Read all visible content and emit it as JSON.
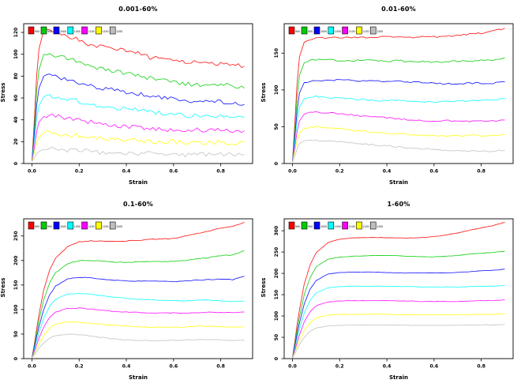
{
  "page": {
    "background": "#ffffff"
  },
  "legend": {
    "labels": [
      "900",
      "950",
      "1000",
      "1050",
      "1100",
      "1150",
      "1200"
    ]
  },
  "colors": {
    "series": [
      "#FF0000",
      "#00CD00",
      "#0000FF",
      "#00FFFF",
      "#FF00FF",
      "#FFFF00",
      "#BEBEBE"
    ]
  },
  "chart_data": [
    {
      "type": "line",
      "title": "0.001-60%",
      "xlabel": "Strain",
      "ylabel": "Stress",
      "xlim": [
        -0.035,
        0.935
      ],
      "ylim": [
        0,
        128
      ],
      "noise": 2.0,
      "xticks": {
        "values": [
          0.0,
          0.2,
          0.4,
          0.6,
          0.8
        ],
        "labels": [
          "0.0",
          "0.2",
          "0.4",
          "0.6",
          "0.8"
        ]
      },
      "yticks": {
        "values": [
          0,
          20,
          40,
          60,
          80,
          100,
          120
        ],
        "labels": [
          "0",
          "20",
          "40",
          "60",
          "80",
          "100",
          "120"
        ]
      },
      "x": [
        0,
        0.01,
        0.02,
        0.03,
        0.05,
        0.075,
        0.1,
        0.15,
        0.2,
        0.25,
        0.3,
        0.35,
        0.4,
        0.45,
        0.5,
        0.55,
        0.6,
        0.65,
        0.7,
        0.75,
        0.8,
        0.85,
        0.9
      ],
      "series": [
        {
          "name": "900",
          "color": "#FF0000",
          "values": [
            2,
            40,
            80,
            105,
            122,
            122,
            120,
            117,
            113,
            108,
            107,
            105,
            103,
            101,
            97,
            96,
            95,
            93,
            93,
            91,
            92,
            90,
            89
          ]
        },
        {
          "name": "950",
          "color": "#00CD00",
          "values": [
            2,
            33,
            66,
            86,
            100,
            101,
            99,
            96,
            93,
            88,
            86,
            84,
            83,
            81,
            78,
            76,
            75,
            73,
            72,
            71,
            73,
            70,
            69
          ]
        },
        {
          "name": "1000",
          "color": "#0000FF",
          "values": [
            2,
            27,
            53,
            69,
            80,
            81,
            80,
            77,
            74,
            71,
            69,
            67,
            65,
            64,
            61,
            60,
            59,
            57,
            58,
            56,
            57,
            55,
            54
          ]
        },
        {
          "name": "1050",
          "color": "#00FFFF",
          "values": [
            2,
            21,
            41,
            53,
            61,
            62,
            61,
            59,
            57,
            54,
            53,
            51,
            50,
            49,
            47,
            46,
            45,
            44,
            44,
            43,
            44,
            42,
            42
          ]
        },
        {
          "name": "1100",
          "color": "#FF00FF",
          "values": [
            2,
            15,
            29,
            38,
            43,
            44,
            43,
            42,
            40,
            38,
            36,
            35,
            34,
            33,
            32,
            31,
            31,
            30,
            31,
            30,
            31,
            29,
            30
          ]
        },
        {
          "name": "1150",
          "color": "#FFFF00",
          "values": [
            2,
            10,
            19,
            24,
            28,
            28,
            27,
            26,
            26,
            24,
            23,
            22,
            22,
            21,
            20,
            20,
            20,
            19,
            19,
            19,
            20,
            18,
            19
          ]
        },
        {
          "name": "1200",
          "color": "#BEBEBE",
          "values": [
            2,
            5,
            9,
            11,
            13,
            13,
            13,
            12,
            12,
            11,
            10,
            10,
            10,
            9,
            9,
            9,
            9,
            8,
            9,
            8,
            9,
            8,
            8
          ]
        }
      ]
    },
    {
      "type": "line",
      "title": "0.01-60%",
      "xlabel": "Strain",
      "ylabel": "Stress",
      "xlim": [
        -0.035,
        0.935
      ],
      "ylim": [
        0,
        190
      ],
      "noise": 1.1,
      "xticks": {
        "values": [
          0.0,
          0.2,
          0.4,
          0.6,
          0.8
        ],
        "labels": [
          "0.0",
          "0.2",
          "0.4",
          "0.6",
          "0.8"
        ]
      },
      "yticks": {
        "values": [
          0,
          50,
          100,
          150
        ],
        "labels": [
          "0",
          "50",
          "100",
          "150"
        ]
      },
      "x": [
        0,
        0.01,
        0.02,
        0.03,
        0.05,
        0.075,
        0.1,
        0.15,
        0.2,
        0.25,
        0.3,
        0.35,
        0.4,
        0.45,
        0.5,
        0.55,
        0.6,
        0.65,
        0.7,
        0.75,
        0.8,
        0.85,
        0.9
      ],
      "series": [
        {
          "name": "900",
          "color": "#FF0000",
          "values": [
            2,
            55,
            110,
            145,
            165,
            169,
            170,
            171,
            171,
            171,
            171,
            172,
            172,
            172,
            171,
            173,
            172,
            173,
            174,
            176,
            177,
            180,
            184
          ]
        },
        {
          "name": "950",
          "color": "#00CD00",
          "values": [
            2,
            45,
            90,
            120,
            137,
            140,
            141,
            141,
            140,
            140,
            140,
            140,
            139,
            140,
            138,
            139,
            138,
            138,
            139,
            139,
            140,
            141,
            144
          ]
        },
        {
          "name": "1000",
          "color": "#0000FF",
          "values": [
            2,
            36,
            72,
            96,
            110,
            112,
            113,
            113,
            114,
            113,
            112,
            112,
            111,
            112,
            110,
            110,
            109,
            108,
            109,
            109,
            109,
            109,
            111
          ]
        },
        {
          "name": "1050",
          "color": "#00FFFF",
          "values": [
            2,
            29,
            58,
            77,
            88,
            90,
            91,
            90,
            89,
            88,
            87,
            86,
            85,
            86,
            84,
            84,
            84,
            84,
            85,
            85,
            86,
            86,
            88
          ]
        },
        {
          "name": "1100",
          "color": "#FF00FF",
          "values": [
            2,
            22,
            44,
            58,
            67,
            69,
            70,
            69,
            68,
            66,
            64,
            63,
            62,
            61,
            59,
            59,
            58,
            58,
            58,
            57,
            58,
            58,
            59
          ]
        },
        {
          "name": "1150",
          "color": "#FFFF00",
          "values": [
            2,
            16,
            31,
            41,
            48,
            49,
            50,
            49,
            47,
            45,
            44,
            42,
            41,
            41,
            39,
            39,
            38,
            38,
            38,
            38,
            38,
            38,
            39
          ]
        },
        {
          "name": "1200",
          "color": "#BEBEBE",
          "values": [
            2,
            10,
            20,
            27,
            31,
            32,
            32,
            31,
            30,
            28,
            27,
            25,
            24,
            23,
            21,
            20,
            19,
            18,
            18,
            17,
            17,
            17,
            18
          ]
        }
      ]
    },
    {
      "type": "line",
      "title": "0.1-60%",
      "xlabel": "Strain",
      "ylabel": "Stress",
      "xlim": [
        -0.035,
        0.935
      ],
      "ylim": [
        0,
        285
      ],
      "noise": 0.7,
      "xticks": {
        "values": [
          0.0,
          0.2,
          0.4,
          0.6,
          0.8
        ],
        "labels": [
          "0.0",
          "0.2",
          "0.4",
          "0.6",
          "0.8"
        ]
      },
      "yticks": {
        "values": [
          0,
          50,
          100,
          150,
          200,
          250
        ],
        "labels": [
          "0",
          "50",
          "100",
          "150",
          "200",
          "250"
        ]
      },
      "x": [
        0,
        0.01,
        0.02,
        0.03,
        0.05,
        0.075,
        0.1,
        0.15,
        0.2,
        0.25,
        0.3,
        0.35,
        0.4,
        0.45,
        0.5,
        0.55,
        0.6,
        0.65,
        0.7,
        0.75,
        0.8,
        0.85,
        0.9
      ],
      "series": [
        {
          "name": "900",
          "color": "#FF0000",
          "values": [
            2,
            30,
            60,
            90,
            140,
            180,
            205,
            228,
            238,
            240,
            240,
            239,
            240,
            241,
            243,
            244,
            245,
            250,
            255,
            260,
            266,
            269,
            278
          ]
        },
        {
          "name": "950",
          "color": "#00CD00",
          "values": [
            2,
            26,
            52,
            78,
            120,
            155,
            175,
            193,
            200,
            200,
            199,
            197,
            196,
            197,
            198,
            198,
            198,
            200,
            203,
            206,
            210,
            211,
            220
          ]
        },
        {
          "name": "1000",
          "color": "#0000FF",
          "values": [
            2,
            22,
            44,
            65,
            100,
            130,
            148,
            162,
            166,
            165,
            162,
            160,
            158,
            158,
            158,
            158,
            157,
            158,
            160,
            161,
            162,
            161,
            168
          ]
        },
        {
          "name": "1050",
          "color": "#00FFFF",
          "values": [
            2,
            18,
            36,
            53,
            82,
            107,
            121,
            131,
            133,
            131,
            128,
            125,
            123,
            121,
            120,
            119,
            118,
            118,
            119,
            119,
            118,
            116,
            117
          ]
        },
        {
          "name": "1100",
          "color": "#FF00FF",
          "values": [
            2,
            14,
            28,
            42,
            64,
            84,
            95,
            102,
            103,
            101,
            99,
            96,
            95,
            94,
            93,
            93,
            93,
            93,
            94,
            95,
            94,
            94,
            95
          ]
        },
        {
          "name": "1150",
          "color": "#FFFF00",
          "values": [
            2,
            10,
            20,
            30,
            47,
            62,
            70,
            75,
            74,
            72,
            70,
            68,
            66,
            65,
            64,
            64,
            64,
            64,
            66,
            66,
            65,
            64,
            65
          ]
        },
        {
          "name": "1200",
          "color": "#BEBEBE",
          "values": [
            2,
            7,
            14,
            21,
            32,
            42,
            47,
            50,
            49,
            46,
            43,
            40,
            38,
            37,
            37,
            37,
            37,
            38,
            39,
            39,
            38,
            37,
            37
          ]
        }
      ]
    },
    {
      "type": "line",
      "title": "1-60%",
      "xlabel": "Strain",
      "ylabel": "Stress",
      "xlim": [
        -0.035,
        0.935
      ],
      "ylim": [
        0,
        328
      ],
      "noise": 0.45,
      "xticks": {
        "values": [
          0.0,
          0.2,
          0.4,
          0.6,
          0.8
        ],
        "labels": [
          "0.0",
          "0.2",
          "0.4",
          "0.6",
          "0.8"
        ]
      },
      "yticks": {
        "values": [
          0,
          50,
          100,
          150,
          200,
          250,
          300
        ],
        "labels": [
          "0",
          "50",
          "100",
          "150",
          "200",
          "250",
          "300"
        ]
      },
      "x": [
        0,
        0.01,
        0.02,
        0.03,
        0.05,
        0.075,
        0.1,
        0.15,
        0.2,
        0.25,
        0.3,
        0.35,
        0.4,
        0.45,
        0.5,
        0.55,
        0.6,
        0.65,
        0.7,
        0.75,
        0.8,
        0.85,
        0.9
      ],
      "series": [
        {
          "name": "900",
          "color": "#FF0000",
          "values": [
            2,
            40,
            80,
            115,
            175,
            220,
            248,
            272,
            280,
            283,
            284,
            284,
            284,
            283,
            283,
            284,
            286,
            290,
            295,
            301,
            307,
            312,
            320
          ]
        },
        {
          "name": "950",
          "color": "#00CD00",
          "values": [
            2,
            34,
            68,
            98,
            150,
            190,
            215,
            233,
            238,
            240,
            241,
            242,
            242,
            241,
            240,
            239,
            239,
            240,
            242,
            245,
            247,
            249,
            252
          ]
        },
        {
          "name": "1000",
          "color": "#0000FF",
          "values": [
            2,
            29,
            58,
            84,
            128,
            163,
            183,
            198,
            202,
            203,
            203,
            203,
            202,
            201,
            201,
            201,
            201,
            201,
            202,
            204,
            206,
            207,
            210
          ]
        },
        {
          "name": "1050",
          "color": "#00FFFF",
          "values": [
            2,
            24,
            48,
            70,
            107,
            136,
            154,
            166,
            169,
            170,
            170,
            170,
            170,
            169,
            169,
            168,
            168,
            168,
            168,
            169,
            170,
            170,
            172
          ]
        },
        {
          "name": "1100",
          "color": "#FF00FF",
          "values": [
            2,
            19,
            38,
            56,
            86,
            110,
            124,
            133,
            135,
            136,
            136,
            136,
            136,
            135,
            135,
            134,
            134,
            134,
            134,
            135,
            136,
            136,
            138
          ]
        },
        {
          "name": "1150",
          "color": "#FFFF00",
          "values": [
            2,
            15,
            30,
            43,
            66,
            85,
            95,
            102,
            104,
            104,
            104,
            104,
            104,
            103,
            103,
            103,
            103,
            103,
            103,
            103,
            104,
            104,
            105
          ]
        },
        {
          "name": "1200",
          "color": "#BEBEBE",
          "values": [
            2,
            11,
            22,
            33,
            50,
            64,
            72,
            77,
            78,
            79,
            79,
            79,
            79,
            79,
            78,
            78,
            78,
            78,
            78,
            79,
            79,
            79,
            80
          ]
        }
      ]
    }
  ]
}
